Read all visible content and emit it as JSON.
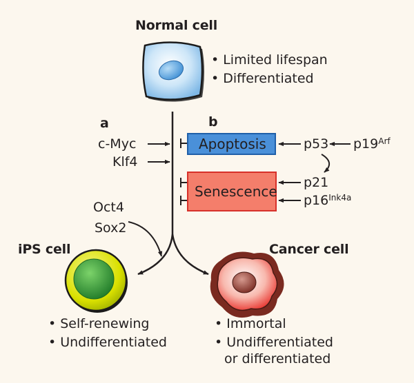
{
  "normal_cell": {
    "title": "Normal cell",
    "traits": [
      "Limited lifespan",
      "Differentiated"
    ]
  },
  "panels": {
    "a": "a",
    "b": "b"
  },
  "pathway_a": {
    "factors_inhibit": [
      "c-Myc",
      "Klf4"
    ],
    "factors_promote": [
      "Oct4",
      "Sox2"
    ]
  },
  "pathway_b": {
    "apoptosis": "Apoptosis",
    "senescence": "Senescence",
    "p53": "p53",
    "p19": {
      "base": "p19",
      "sup": "Arf"
    },
    "p21": "p21",
    "p16": {
      "base": "p16",
      "sup": "Ink4a"
    }
  },
  "ips_cell": {
    "title": "iPS cell",
    "traits": [
      "Self-renewing",
      "Undifferentiated"
    ]
  },
  "cancer_cell": {
    "title": "Cancer cell",
    "traits": [
      "Immortal",
      "Undifferentiated",
      "or differentiated"
    ]
  },
  "colors": {
    "apoptosis_fill": "#4a90d9",
    "apoptosis_stroke": "#1f5fa8",
    "senescence_fill": "#f47e6b",
    "senescence_stroke": "#d7302a",
    "ips_outer": "#d7e000",
    "ips_inner": "#2e9c3a",
    "cancer_outer": "#a8322a",
    "normal_cell": "#8ac4ee"
  }
}
